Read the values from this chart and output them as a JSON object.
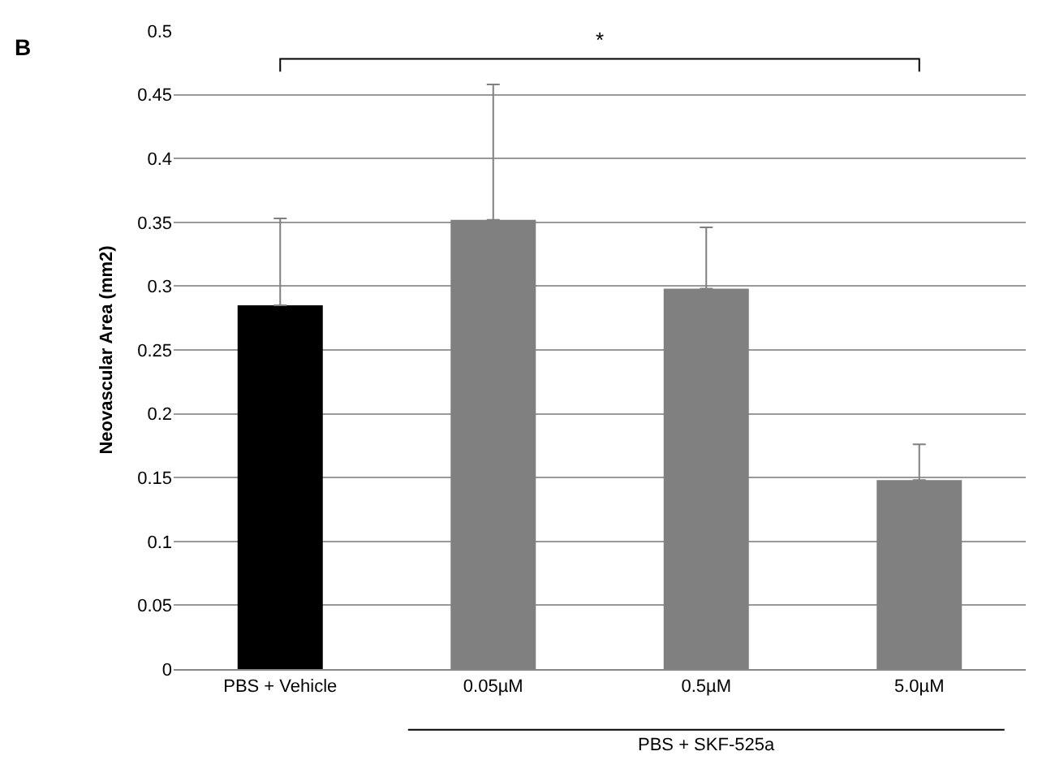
{
  "chart_data": {
    "type": "bar",
    "ylabel": "Neovascular Area (mm2)",
    "categories": [
      "PBS + Vehicle",
      "0.05µM",
      "0.5µM",
      "5.0µM"
    ],
    "values": [
      0.285,
      0.352,
      0.298,
      0.148
    ],
    "colors": [
      "#000000",
      "#808080",
      "#808080",
      "#808080"
    ],
    "errors": [
      [
        0.285,
        0.353
      ],
      [
        0.352,
        0.458
      ],
      [
        0.298,
        0.346
      ],
      [
        0.148,
        0.176
      ]
    ],
    "ylim": [
      0,
      0.5
    ],
    "yticks": [
      0,
      0.05,
      0.1,
      0.15,
      0.2,
      0.25,
      0.3,
      0.35,
      0.4,
      0.45,
      0.5
    ],
    "grid": "y",
    "annotations": [
      "B",
      "*",
      "PBS + SKF-525a"
    ]
  }
}
